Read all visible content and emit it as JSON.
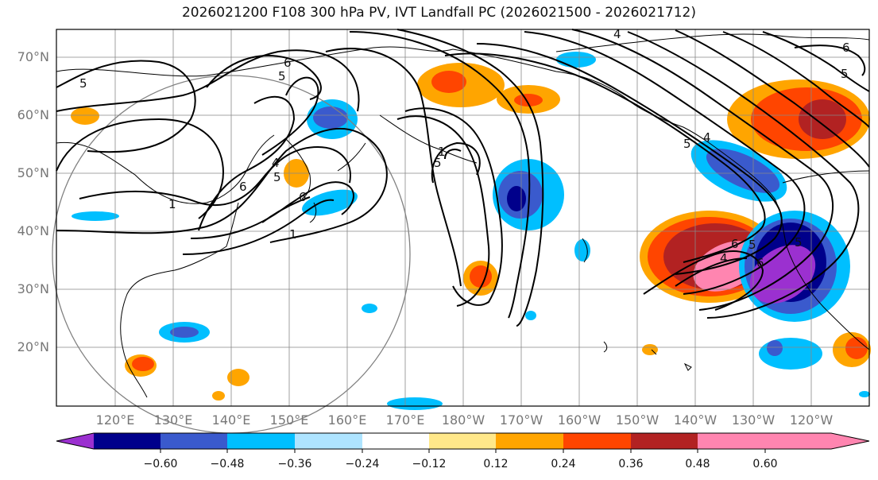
{
  "title": "2026021200 F108 300 hPa PV, IVT Landfall PC (2026021500 - 2026021712)",
  "lat_labels": [
    "70°N",
    "60°N",
    "50°N",
    "40°N",
    "30°N",
    "20°N"
  ],
  "lon_labels": [
    "120°E",
    "130°E",
    "140°E",
    "150°E",
    "160°E",
    "170°E",
    "180°W",
    "170°W",
    "160°W",
    "150°W",
    "140°W",
    "130°W",
    "120°W"
  ],
  "colorbar": {
    "ticks": [
      "−0.60",
      "−0.48",
      "−0.36",
      "−0.24",
      "−0.12",
      "0.12",
      "0.24",
      "0.36",
      "0.48",
      "0.60"
    ],
    "colors": [
      "#9b30d0",
      "#00008b",
      "#3a5acd",
      "#00bfff",
      "#aee4ff",
      "#ffffff",
      "#ffe88a",
      "#ffa500",
      "#ff4500",
      "#b22222",
      "#ff85b0"
    ]
  },
  "contour_labels": [
    "5",
    "6",
    "5",
    "4",
    "1",
    "5",
    "6",
    "6",
    "1",
    "5",
    "1",
    "4",
    "5",
    "6",
    "5",
    "4",
    "6",
    "5",
    "6",
    "5",
    "4"
  ],
  "colors": {
    "contour": "#000000",
    "coast": "#000000",
    "grid": "#888888",
    "range_ring": "#808080"
  }
}
